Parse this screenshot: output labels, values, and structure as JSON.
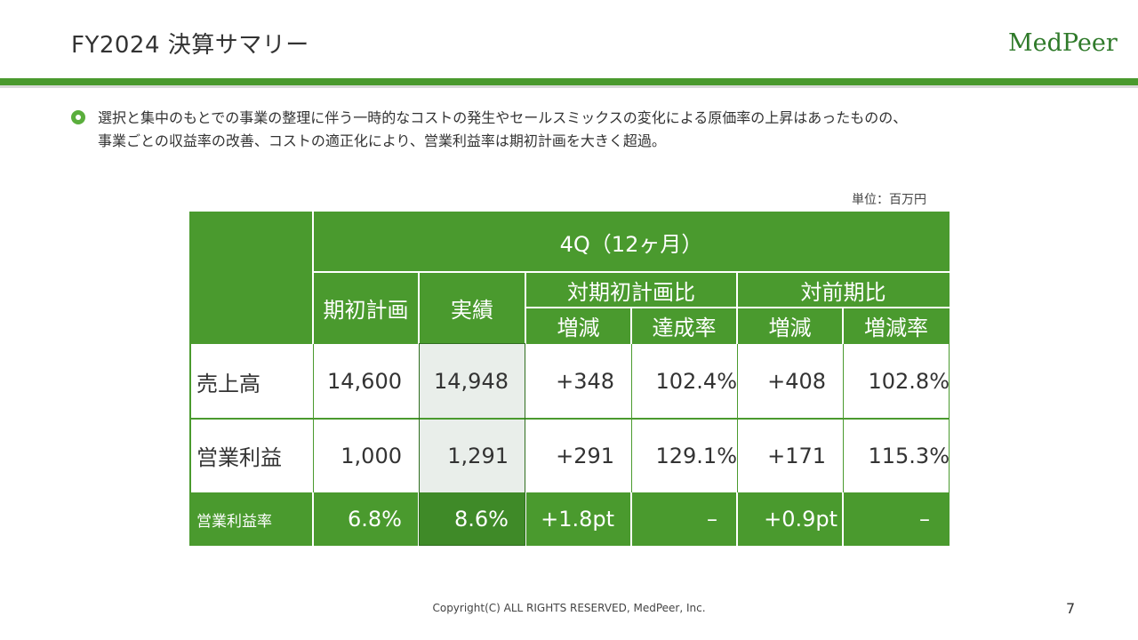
{
  "header": {
    "title": "FY2024 決算サマリー",
    "logo_text": "MedPeer"
  },
  "summary": {
    "line1": "選択と集中のもとでの事業の整理に伴う一時的なコストの発生やセールスミックスの変化による原価率の上昇はあったものの、",
    "line2": "事業ごとの収益率の改善、コストの適正化により、営業利益率は期初計画を大きく超過。"
  },
  "unit": "単位：百万円",
  "table": {
    "period_header": "4Q（12ヶ月）",
    "col_plan": "期初計画",
    "col_actual": "実績",
    "group_vs_plan": "対期初計画比",
    "group_vs_prev": "対前期比",
    "sub_change": "増減",
    "sub_achievement": "達成率",
    "sub_change2": "増減",
    "sub_change_rate": "増減率",
    "rows": [
      {
        "label": "売上高",
        "plan": "14,600",
        "actual": "14,948",
        "vs_plan_change": "+348",
        "vs_plan_rate": "102.4%",
        "vs_prev_change": "+408",
        "vs_prev_rate": "102.8%"
      },
      {
        "label": "営業利益",
        "plan": "1,000",
        "actual": "1,291",
        "vs_plan_change": "+291",
        "vs_plan_rate": "129.1%",
        "vs_prev_change": "+171",
        "vs_prev_rate": "115.3%"
      },
      {
        "label": "営業利益率",
        "plan": "6.8%",
        "actual": "8.6%",
        "vs_plan_change": "+1.8pt",
        "vs_plan_rate": "–",
        "vs_prev_change": "+0.9pt",
        "vs_prev_rate": "–"
      }
    ]
  },
  "footer": {
    "copyright": "Copyright(C) ALL RIGHTS RESERVED, MedPeer, Inc.",
    "page_number": "7"
  },
  "colors": {
    "brand_green": "#4a9a2e",
    "actual_highlight": "#e9eeea"
  }
}
